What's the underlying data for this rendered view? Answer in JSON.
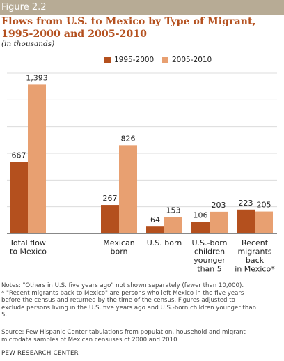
{
  "figure_label": "Figure 2.2",
  "chart_data": {
    "type": "bar",
    "title": "Flows from U.S. to Mexico by Type of Migrant, 1995-2000  and 2005-2010",
    "subtitle": "(in thousands)",
    "categories": [
      [
        "Total flow",
        "to Mexico"
      ],
      [
        "Mexican",
        "born"
      ],
      [
        "U.S. born"
      ],
      [
        "U.S.-born",
        "children",
        "younger",
        "than 5"
      ],
      [
        "Recent",
        "migrants",
        "back",
        "in Mexico*"
      ]
    ],
    "series": [
      {
        "name": "1995-2000",
        "color": "#b4501e",
        "values": [
          667,
          267,
          64,
          106,
          223
        ],
        "labels": [
          "667",
          "267",
          "64",
          "106",
          "223"
        ]
      },
      {
        "name": "2005-2010",
        "color": "#e8a071",
        "values": [
          1393,
          826,
          153,
          203,
          205
        ],
        "labels": [
          "1,393",
          "826",
          "153",
          "203",
          "205"
        ]
      }
    ],
    "ylim": [
      0,
      1500
    ],
    "grid": true,
    "legend": "top-right"
  },
  "notes": [
    "Notes: \"Others in U.S. five years ago\" not shown separately (fewer than 10,000).",
    "* \"Recent migrants back to Mexico\" are persons who  left Mexico in the five years",
    "before the census and returned by the time of the census. Figures adjusted to",
    "exclude persons living in the U.S.  five years ago and U.S.-born children younger than",
    "5."
  ],
  "source": [
    "Source: Pew Hispanic Center tabulations from population, household and migrant",
    "microdata samples of Mexican censuses of 2000 and 2010"
  ],
  "organization": "PEW RESEARCH CENTER"
}
